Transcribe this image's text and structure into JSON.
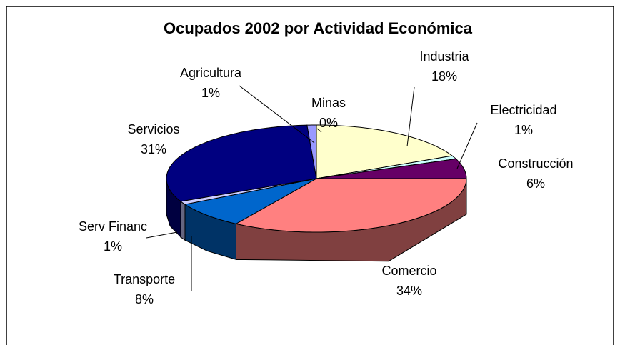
{
  "chart_data": {
    "type": "pie",
    "title": "Ocupados 2002 por Actividad Económica",
    "categories": [
      "Minas",
      "Industria",
      "Electricidad",
      "Construcción",
      "Comercio",
      "Transporte",
      "Serv Financ",
      "Servicios",
      "Agricultura"
    ],
    "values": [
      0,
      18,
      1,
      6,
      34,
      8,
      1,
      31,
      1
    ],
    "value_labels": [
      "0%",
      "18%",
      "1%",
      "6%",
      "34%",
      "8%",
      "1%",
      "31%",
      "1%"
    ],
    "colors": [
      "#993366",
      "#ffffcc",
      "#ccffff",
      "#660066",
      "#ff8080",
      "#0066cc",
      "#ccccff",
      "#000080",
      "#9999ff"
    ]
  }
}
